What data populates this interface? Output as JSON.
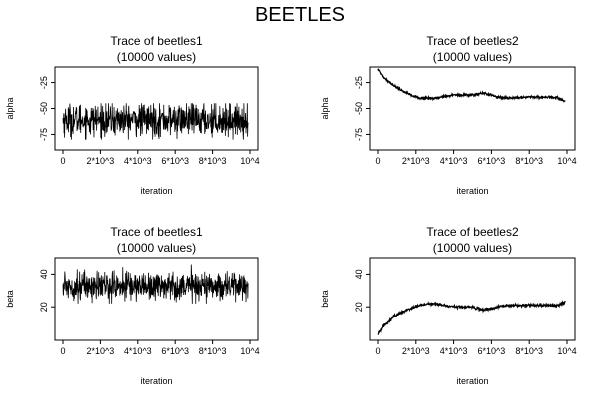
{
  "figure_title": "BEETLES",
  "chart_data": [
    {
      "type": "line",
      "title": "Trace of beetles1",
      "subtitle": "(10000 values)",
      "xlabel": "iteration",
      "ylabel": "alpha",
      "xlim": [
        0,
        10000
      ],
      "ylim": [
        -90,
        -10
      ],
      "x_ticks": [
        0,
        2000,
        4000,
        6000,
        8000,
        10000
      ],
      "x_tick_labels": [
        "0",
        "2*10^3",
        "4*10^3",
        "6*10^3",
        "8*10^3",
        "10^4"
      ],
      "y_ticks": [
        -75,
        -50,
        -25
      ],
      "y_tick_labels": [
        "-75",
        "-50",
        "-25"
      ],
      "series": [
        {
          "trace": {
            "kind": "stationary",
            "mean": -61,
            "spread": 8,
            "min": -80,
            "max": -45,
            "n": 10000,
            "x_start": 0,
            "x_end": 9900,
            "color": "#000000"
          }
        }
      ]
    },
    {
      "type": "line",
      "title": "Trace of beetles2",
      "subtitle": "(10000 values)",
      "xlabel": "iteration",
      "ylabel": "alpha",
      "xlim": [
        0,
        10000
      ],
      "ylim": [
        -90,
        -10
      ],
      "x_ticks": [
        0,
        2000,
        4000,
        6000,
        8000,
        10000
      ],
      "x_tick_labels": [
        "0",
        "2*10^3",
        "4*10^3",
        "6*10^3",
        "8*10^3",
        "10^4"
      ],
      "y_ticks": [
        -75,
        -50,
        -25
      ],
      "y_tick_labels": [
        "-75",
        "-50",
        "-25"
      ],
      "series": [
        {
          "x": [
            0,
            300,
            800,
            1500,
            2200,
            3000,
            4000,
            5000,
            5600,
            6300,
            7000,
            8000,
            9000,
            9500,
            9900
          ],
          "y": [
            -12,
            -20,
            -28,
            -35,
            -40,
            -40,
            -37,
            -37,
            -35,
            -39,
            -40,
            -39,
            -39,
            -40,
            -43
          ],
          "color": "#000000"
        }
      ]
    },
    {
      "type": "line",
      "title": "Trace of beetles1",
      "subtitle": "(10000 values)",
      "xlabel": "iteration",
      "ylabel": "beta",
      "xlim": [
        0,
        10000
      ],
      "ylim": [
        0,
        50
      ],
      "x_ticks": [
        0,
        2000,
        4000,
        6000,
        8000,
        10000
      ],
      "x_tick_labels": [
        "0",
        "2*10^3",
        "4*10^3",
        "6*10^3",
        "8*10^3",
        "10^4"
      ],
      "y_ticks": [
        20,
        40
      ],
      "y_tick_labels": [
        "20",
        "40"
      ],
      "series": [
        {
          "trace": {
            "kind": "stationary",
            "mean": 33,
            "spread": 4.5,
            "min": 22,
            "max": 46,
            "n": 10000,
            "x_start": 0,
            "x_end": 9900,
            "color": "#000000"
          }
        }
      ]
    },
    {
      "type": "line",
      "title": "Trace of beetles2",
      "subtitle": "(10000 values)",
      "xlabel": "iteration",
      "ylabel": "beta",
      "xlim": [
        0,
        10000
      ],
      "ylim": [
        0,
        50
      ],
      "x_ticks": [
        0,
        2000,
        4000,
        6000,
        8000,
        10000
      ],
      "x_tick_labels": [
        "0",
        "2*10^3",
        "4*10^3",
        "6*10^3",
        "8*10^3",
        "10^4"
      ],
      "y_ticks": [
        20,
        40
      ],
      "y_tick_labels": [
        "20",
        "40"
      ],
      "series": [
        {
          "x": [
            0,
            300,
            800,
            1500,
            2200,
            3000,
            4000,
            5000,
            5600,
            6300,
            7000,
            8000,
            9000,
            9500,
            9900
          ],
          "y": [
            4,
            9,
            14,
            18,
            21,
            22,
            20,
            20,
            18,
            20,
            21,
            21,
            21,
            21,
            23
          ],
          "color": "#000000"
        }
      ]
    }
  ]
}
